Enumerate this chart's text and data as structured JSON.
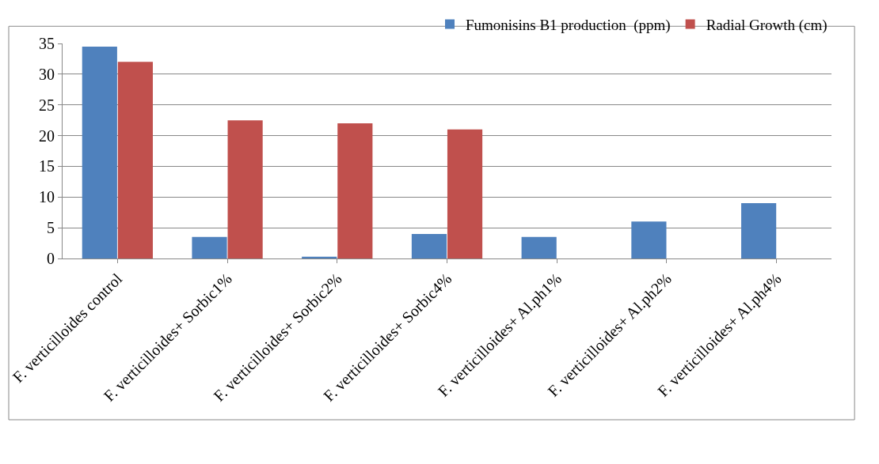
{
  "chart_data": {
    "type": "bar",
    "categories": [
      "F. verticilloides control",
      "F. verticilloides+ Sorbic1%",
      "F. verticilloides+ Sorbic2%",
      "F. verticilloides+ Sorbic4%",
      "F. verticilloides+ Al.ph1%",
      "F. verticilloides+ Al.ph2%",
      "F. verticilloides+ Al.ph4%"
    ],
    "series": [
      {
        "name": "Fumonisins B1 production  (ppm)",
        "color": "#4f81bd",
        "values": [
          34.5,
          3.5,
          0.3,
          4,
          3.5,
          6,
          9
        ]
      },
      {
        "name": "Radial Growth (cm)",
        "color": "#c0504d",
        "values": [
          32,
          22.5,
          22,
          21,
          0,
          0,
          0
        ]
      }
    ],
    "ylim": [
      0,
      35
    ],
    "yticks": [
      0,
      5,
      10,
      15,
      20,
      25,
      30,
      35
    ],
    "grid": "y",
    "legend": "top right"
  }
}
